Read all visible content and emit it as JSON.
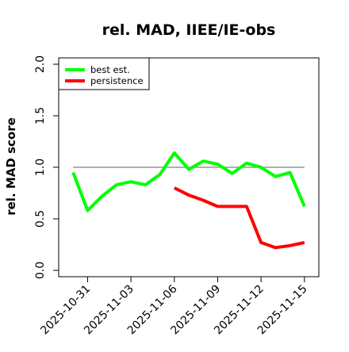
{
  "chart_data": {
    "type": "line",
    "title": "rel. MAD, IIEE/IE-obs",
    "xlabel": "",
    "ylabel": "rel. MAD score",
    "ylim": [
      0.0,
      2.0
    ],
    "yticks": [
      0.0,
      0.5,
      1.0,
      1.5,
      2.0
    ],
    "ytick_labels": [
      "0.0",
      "0.5",
      "1.0",
      "1.5",
      "2.0"
    ],
    "xlim": [
      "2025-10-29",
      "2025-11-16"
    ],
    "xticks": [
      "2025-10-31",
      "2025-11-03",
      "2025-11-06",
      "2025-11-09",
      "2025-11-12",
      "2025-11-15"
    ],
    "grid": false,
    "legend_position": "top-left",
    "reference_line": {
      "y": 1.0,
      "color": "#808080",
      "x_start": "2025-10-30",
      "x_end": "2025-11-15"
    },
    "series": [
      {
        "name": "best est.",
        "color": "#00ff00",
        "x": [
          "2025-10-30",
          "2025-10-31",
          "2025-11-01",
          "2025-11-02",
          "2025-11-03",
          "2025-11-04",
          "2025-11-05",
          "2025-11-06",
          "2025-11-07",
          "2025-11-08",
          "2025-11-09",
          "2025-11-10",
          "2025-11-11",
          "2025-11-12",
          "2025-11-13",
          "2025-11-14",
          "2025-11-15"
        ],
        "values": [
          0.95,
          0.58,
          0.72,
          0.83,
          0.86,
          0.83,
          0.93,
          1.14,
          0.98,
          1.06,
          1.03,
          0.94,
          1.04,
          1.0,
          0.91,
          0.95,
          0.62
        ]
      },
      {
        "name": "persistence",
        "color": "#ff0000",
        "x": [
          "2025-11-06",
          "2025-11-07",
          "2025-11-08",
          "2025-11-09",
          "2025-11-10",
          "2025-11-11",
          "2025-11-12",
          "2025-11-13",
          "2025-11-14",
          "2025-11-15"
        ],
        "values": [
          0.8,
          0.73,
          0.68,
          0.62,
          0.62,
          0.62,
          0.27,
          0.22,
          0.24,
          0.27
        ]
      }
    ]
  }
}
